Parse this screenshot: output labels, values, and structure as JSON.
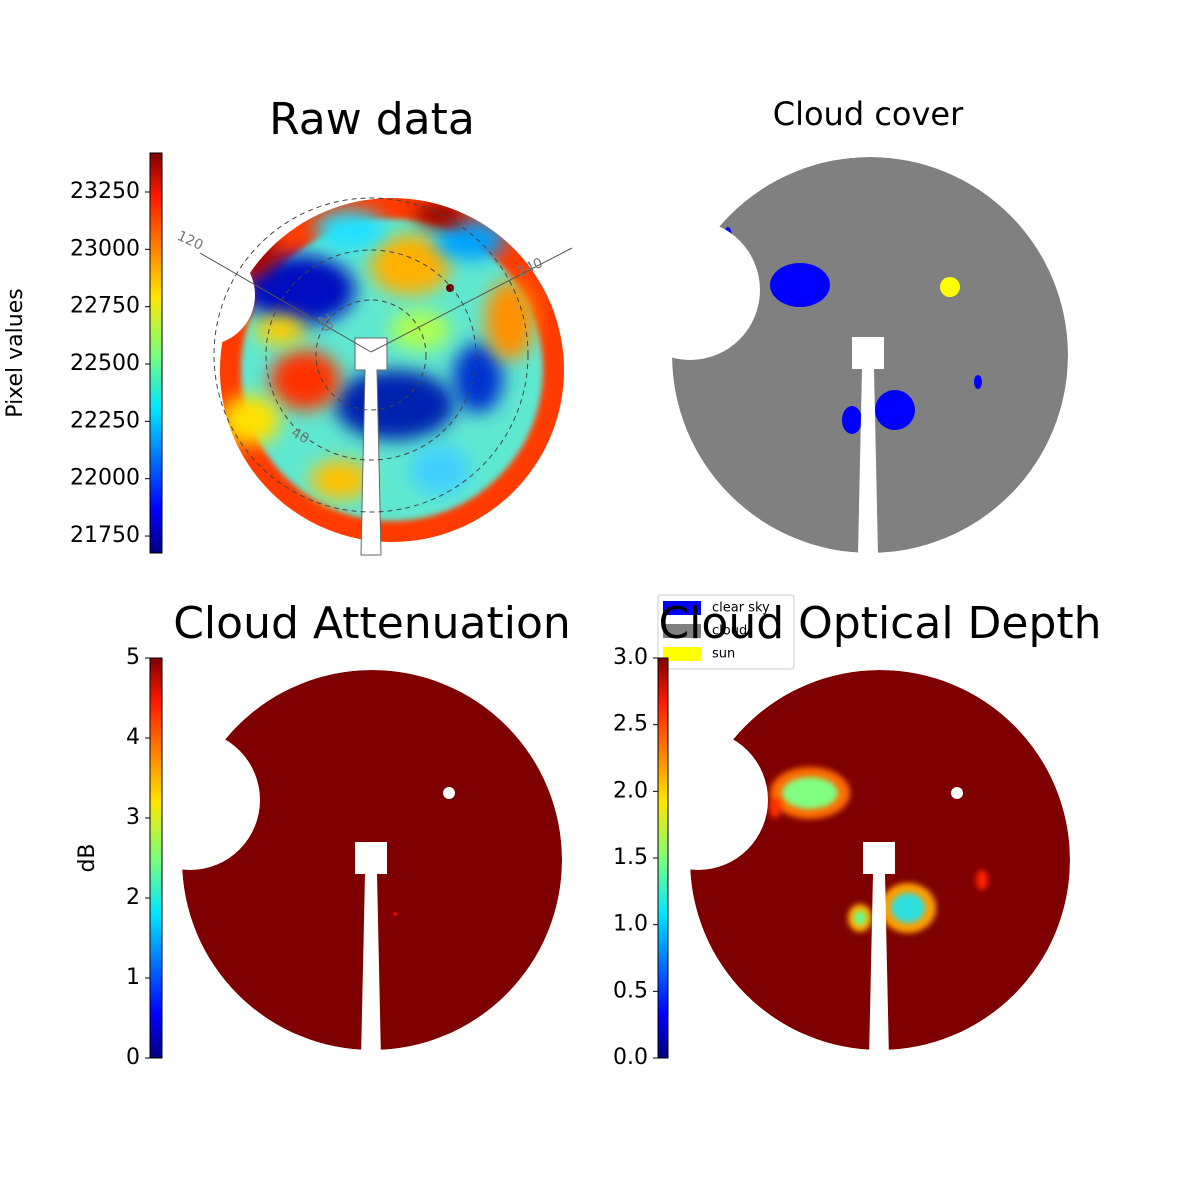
{
  "chart_data": [
    {
      "type": "heatmap",
      "title": "Raw data",
      "colorbar_label": "Pixel values",
      "zlim": [
        21676,
        23420
      ],
      "zticks": [
        21750,
        22000,
        22250,
        22500,
        22750,
        23000,
        23250
      ],
      "annotations": [
        "120",
        "240",
        "20",
        "40"
      ]
    },
    {
      "type": "image",
      "title": "Cloud cover",
      "series": [
        {
          "name": "clear sky",
          "color": "#0000ff"
        },
        {
          "name": "cloud",
          "color": "#808080"
        },
        {
          "name": "sun",
          "color": "#ffff00"
        }
      ]
    },
    {
      "type": "heatmap",
      "title": "Cloud Attenuation",
      "colorbar_label": "dB",
      "zlim": [
        0,
        5
      ],
      "zticks": [
        0,
        1,
        2,
        3,
        4,
        5
      ]
    },
    {
      "type": "heatmap",
      "title": "Cloud Optical Depth",
      "zlim": [
        0,
        3
      ],
      "zticks": [
        {
          "value": 0,
          "label": "0.0"
        },
        0.5,
        {
          "value": 1,
          "label": "1.0"
        },
        1.5,
        {
          "value": 2,
          "label": "2.0"
        },
        2.5,
        {
          "value": 3,
          "label": "3.0"
        }
      ]
    }
  ]
}
